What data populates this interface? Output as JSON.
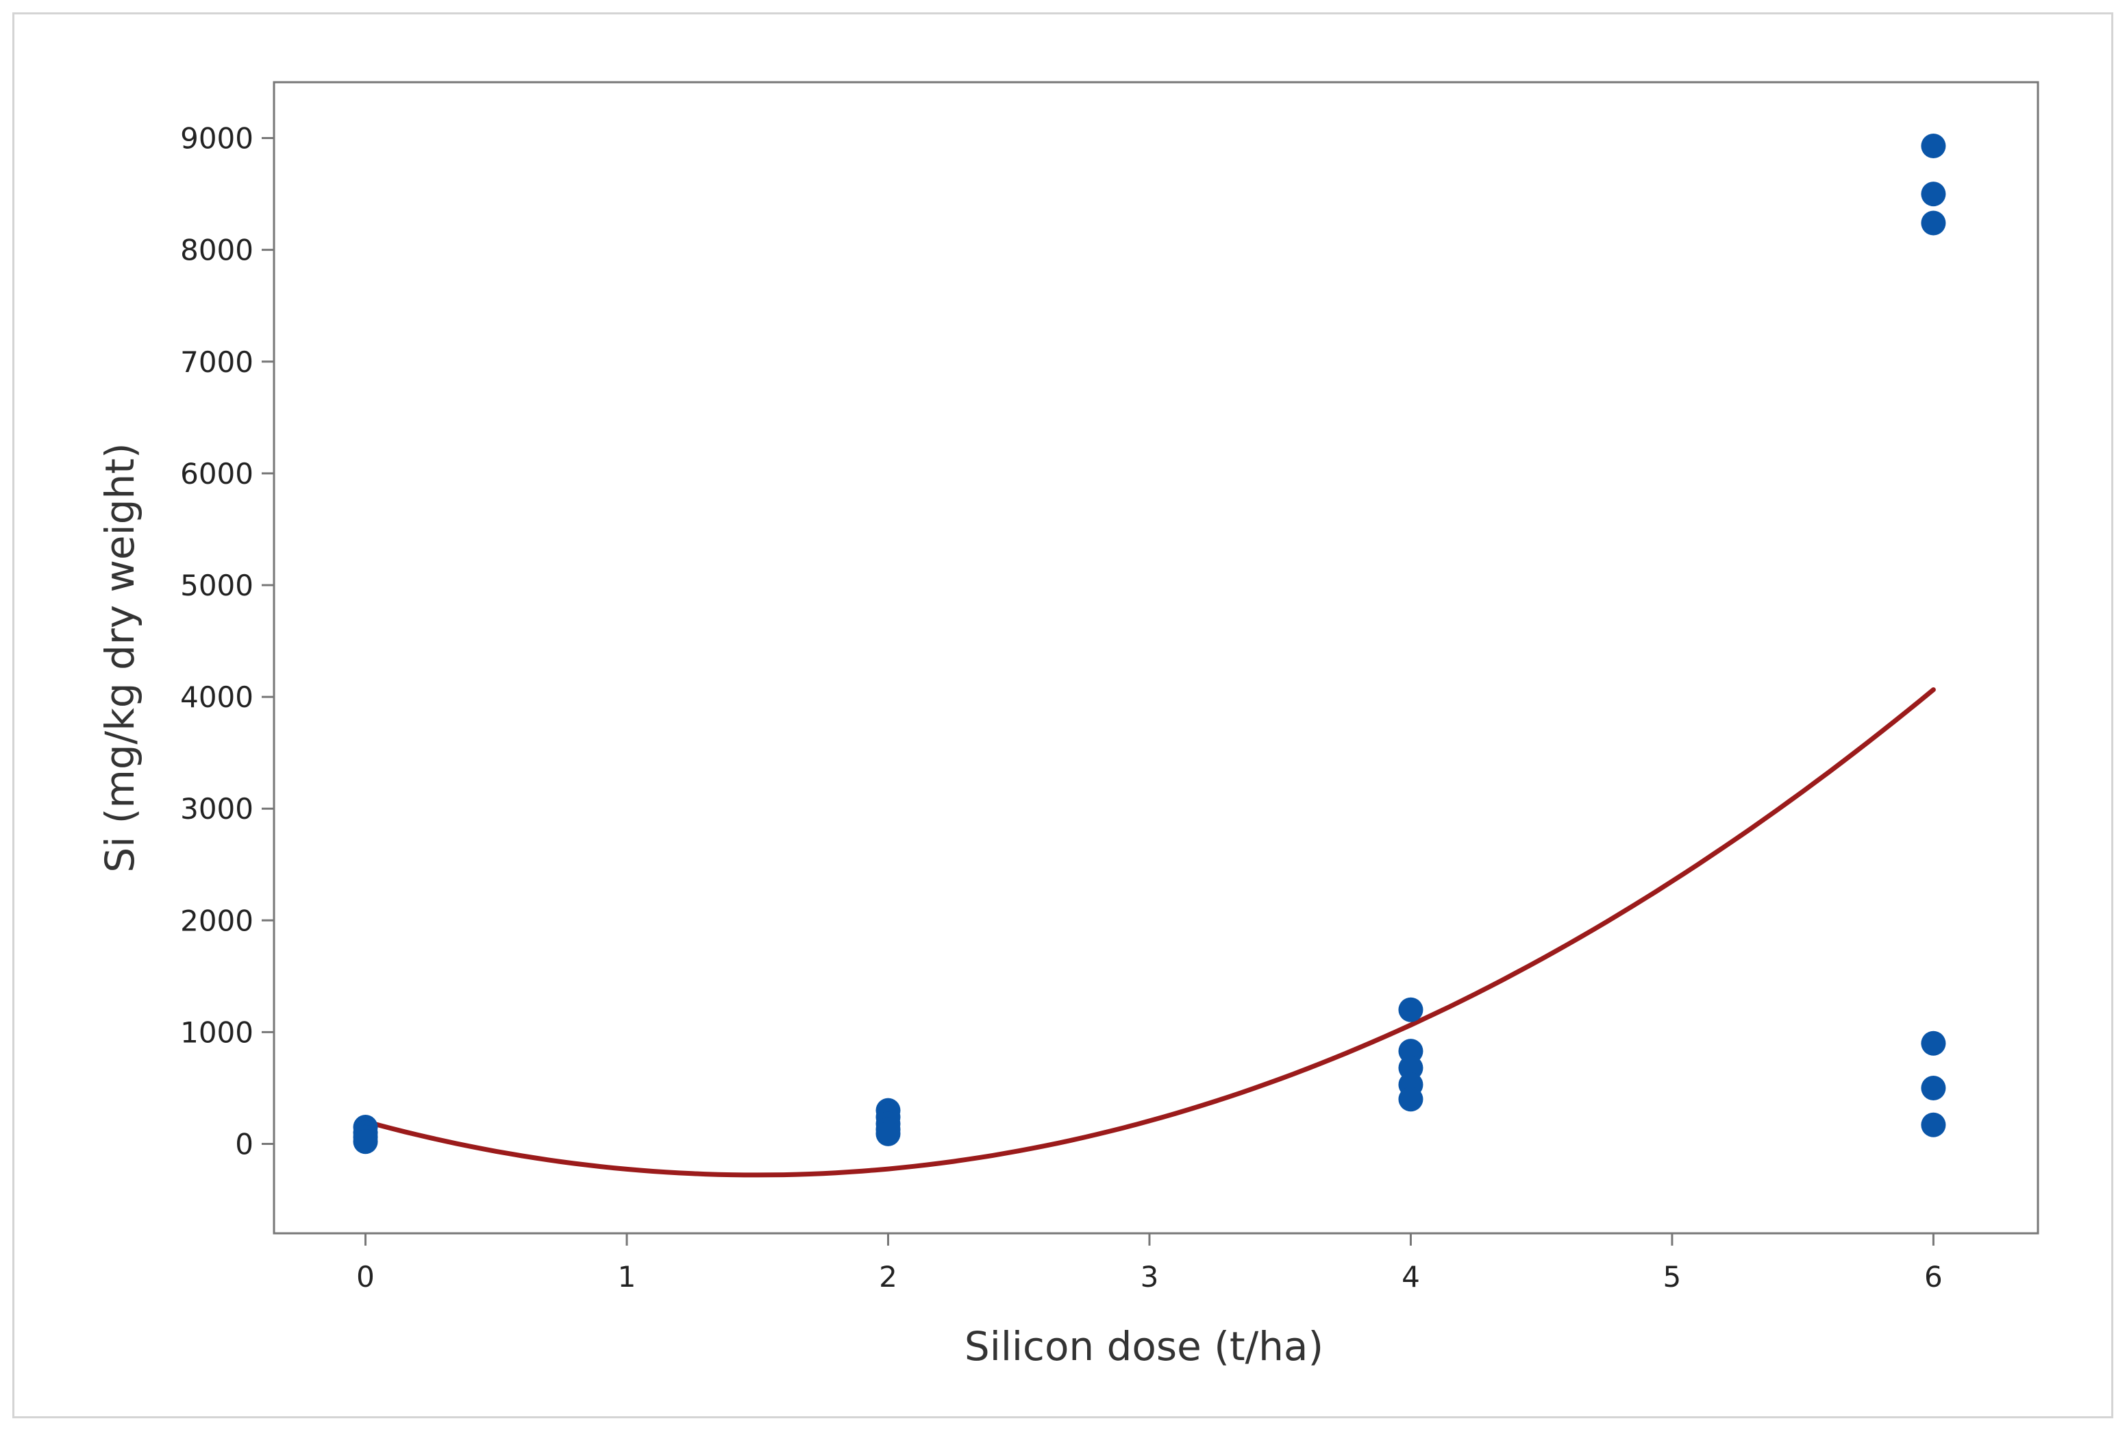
{
  "chart_data": {
    "type": "scatter",
    "xlabel": "Silicon dose (t/ha)",
    "ylabel": "Si (mg/kg dry weight)",
    "xlim": [
      -0.35,
      6.4
    ],
    "ylim": [
      -800,
      9500
    ],
    "xticks": [
      0,
      1,
      2,
      3,
      4,
      5,
      6
    ],
    "yticks": [
      0,
      1000,
      2000,
      3000,
      4000,
      5000,
      6000,
      7000,
      8000,
      9000
    ],
    "xtick_labels": [
      "0",
      "1",
      "2",
      "3",
      "4",
      "5",
      "6"
    ],
    "ytick_labels": [
      "0",
      "1000",
      "2000",
      "3000",
      "4000",
      "5000",
      "6000",
      "7000",
      "8000",
      "9000"
    ],
    "grid": false,
    "series": [
      {
        "kind": "points",
        "color": "#0a55a8",
        "points": [
          [
            0,
            150
          ],
          [
            0,
            100
          ],
          [
            0,
            60
          ],
          [
            0,
            20
          ],
          [
            2,
            300
          ],
          [
            2,
            240
          ],
          [
            2,
            180
          ],
          [
            2,
            130
          ],
          [
            2,
            90
          ],
          [
            4,
            1200
          ],
          [
            4,
            830
          ],
          [
            4,
            680
          ],
          [
            4,
            530
          ],
          [
            4,
            400
          ],
          [
            6,
            8930
          ],
          [
            6,
            8500
          ],
          [
            6,
            8240
          ],
          [
            6,
            900
          ],
          [
            6,
            500
          ],
          [
            6,
            170
          ]
        ]
      },
      {
        "kind": "fit",
        "color": "#9b1b1b",
        "model": "quadratic",
        "coefficients": [
          200,
          -640,
          214
        ],
        "x_range": [
          0,
          6
        ]
      }
    ]
  }
}
